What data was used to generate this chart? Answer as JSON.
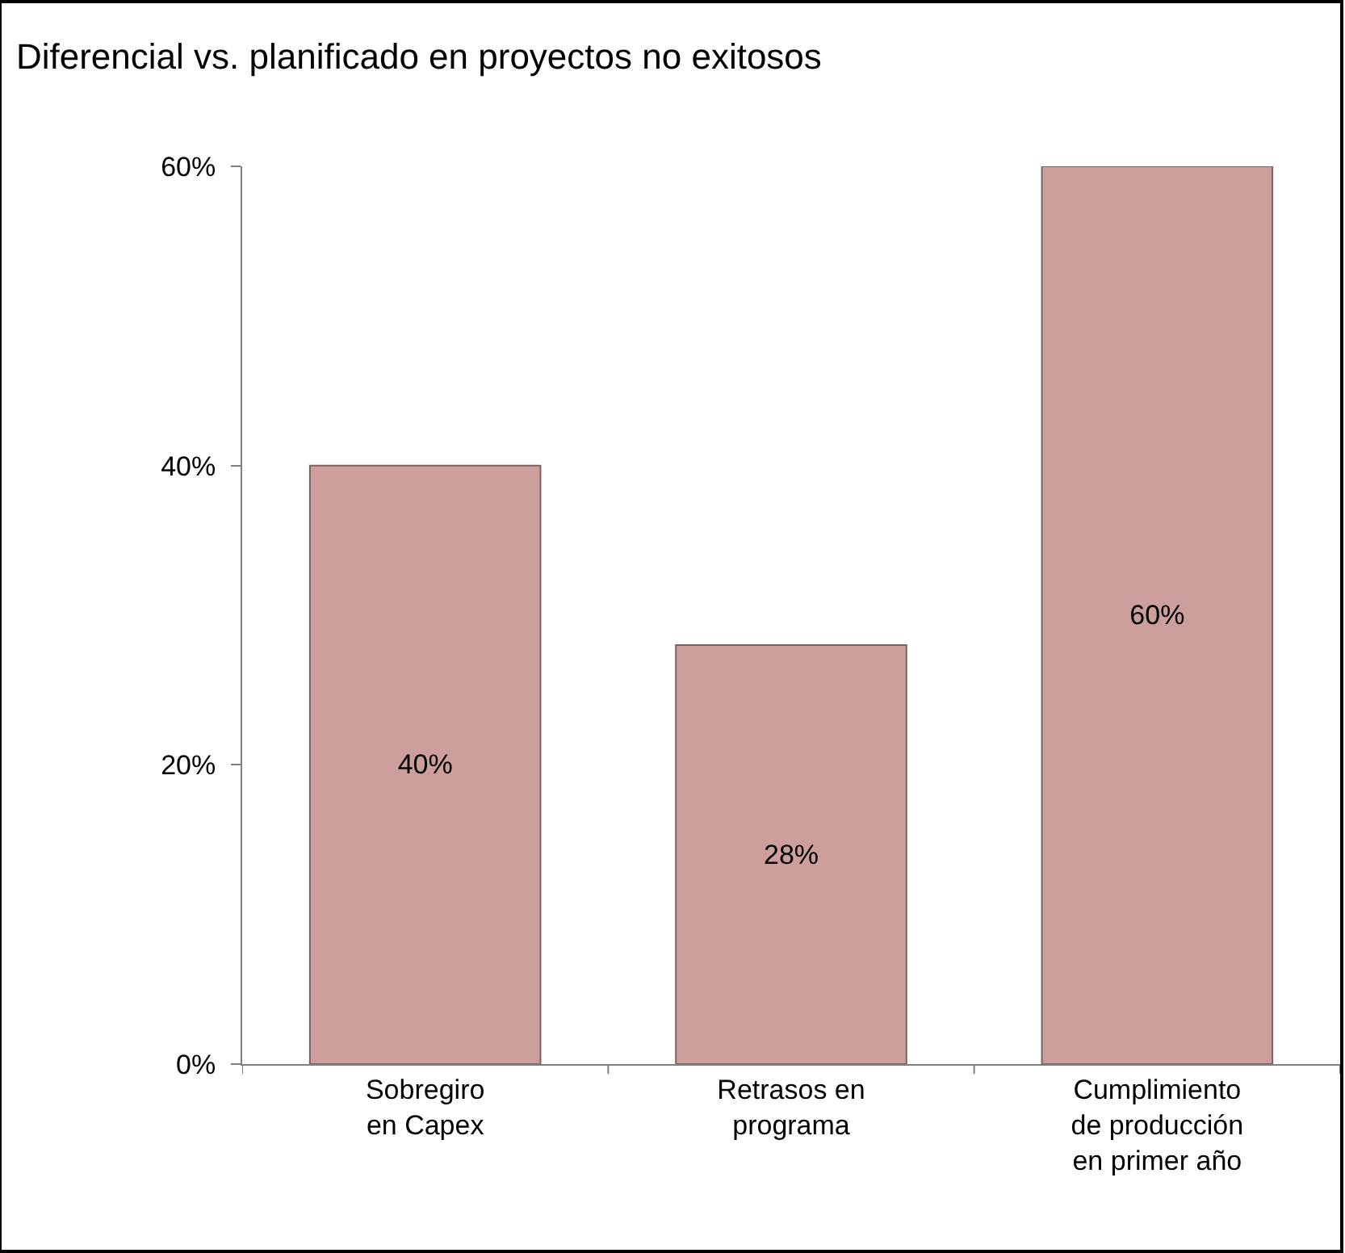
{
  "chart_data": {
    "type": "bar",
    "title": "Diferencial vs. planificado en proyectos no exitosos",
    "categories": [
      "Sobregiro\nen Capex",
      "Retrasos en\nprograma",
      "Cumplimiento\nde producción\nen primer año"
    ],
    "series": [
      {
        "color": "#cc9f9c",
        "values": [
          40,
          28,
          60
        ],
        "value_labels": [
          "40%",
          "28%",
          "60%"
        ]
      }
    ],
    "ylim": [
      0,
      60
    ],
    "yticks": [
      {
        "value": 0,
        "label": "0%"
      },
      {
        "value": 20,
        "label": "20%"
      },
      {
        "value": 40,
        "label": "40%"
      },
      {
        "value": 60,
        "label": "60%"
      }
    ]
  }
}
